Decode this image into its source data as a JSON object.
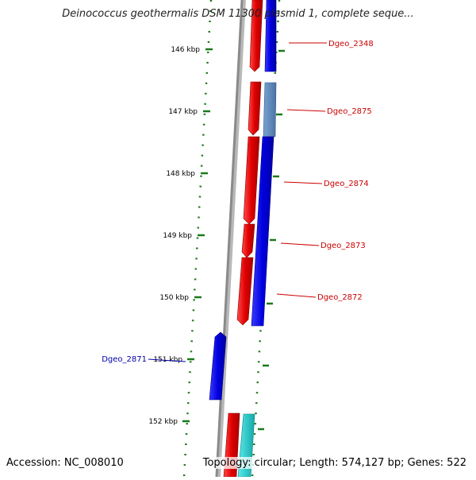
{
  "map": {
    "title": "Deinococcus geothermalis DSM 11300 plasmid 1, complete seque...",
    "accession": "Accession: NC_008010",
    "summary": "Topology: circular; Length: 574,127 bp; Genes: 522",
    "colors": {
      "backbone": "#888888",
      "tick": "#1a7a1a",
      "forward_gene": "#e00000",
      "reverse_gene": "#0000e0",
      "steel_gene": "#5a86b8",
      "cyan_gene": "#22c8c8",
      "label_red": "#cc0000",
      "label_blue": "#0000aa"
    },
    "ticks": [
      "146 kbp",
      "147 kbp",
      "148 kbp",
      "149 kbp",
      "150 kbp",
      "151 kbp",
      "152 kbp"
    ],
    "gene_labels": [
      {
        "name": "Dgeo_2348",
        "side": "right"
      },
      {
        "name": "Dgeo_2875",
        "side": "right"
      },
      {
        "name": "Dgeo_2874",
        "side": "right"
      },
      {
        "name": "Dgeo_2873",
        "side": "right"
      },
      {
        "name": "Dgeo_2872",
        "side": "right"
      },
      {
        "name": "Dgeo_2871",
        "side": "left"
      }
    ]
  }
}
